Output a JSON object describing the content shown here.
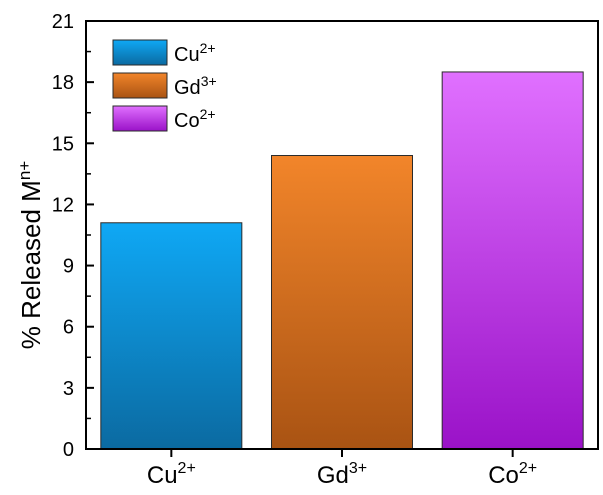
{
  "chart_data": {
    "type": "bar",
    "categories": [
      {
        "base": "Cu",
        "sup": "2+"
      },
      {
        "base": "Gd",
        "sup": "3+"
      },
      {
        "base": "Co",
        "sup": "2+"
      }
    ],
    "values": [
      11.1,
      14.4,
      18.5
    ],
    "ylabel": {
      "base": "% Released M",
      "sup": "n+"
    },
    "xlabel": "",
    "title": "",
    "ylim": [
      0,
      21
    ],
    "yticks": [
      0,
      3,
      6,
      9,
      12,
      15,
      18,
      21
    ],
    "grid": false,
    "legend": {
      "placement": "top-left",
      "entries": [
        {
          "base": "Cu",
          "sup": "2+"
        },
        {
          "base": "Gd",
          "sup": "3+"
        },
        {
          "base": "Co",
          "sup": "2+"
        }
      ]
    },
    "colors": [
      {
        "top": "#0fa8f5",
        "bottom": "#0b6aa1",
        "stroke": "#2a2a2a"
      },
      {
        "top": "#f2852a",
        "bottom": "#a95313",
        "stroke": "#2a2a2a"
      },
      {
        "top": "#e070ff",
        "bottom": "#9a12c8",
        "stroke": "#2a2a2a"
      }
    ]
  }
}
